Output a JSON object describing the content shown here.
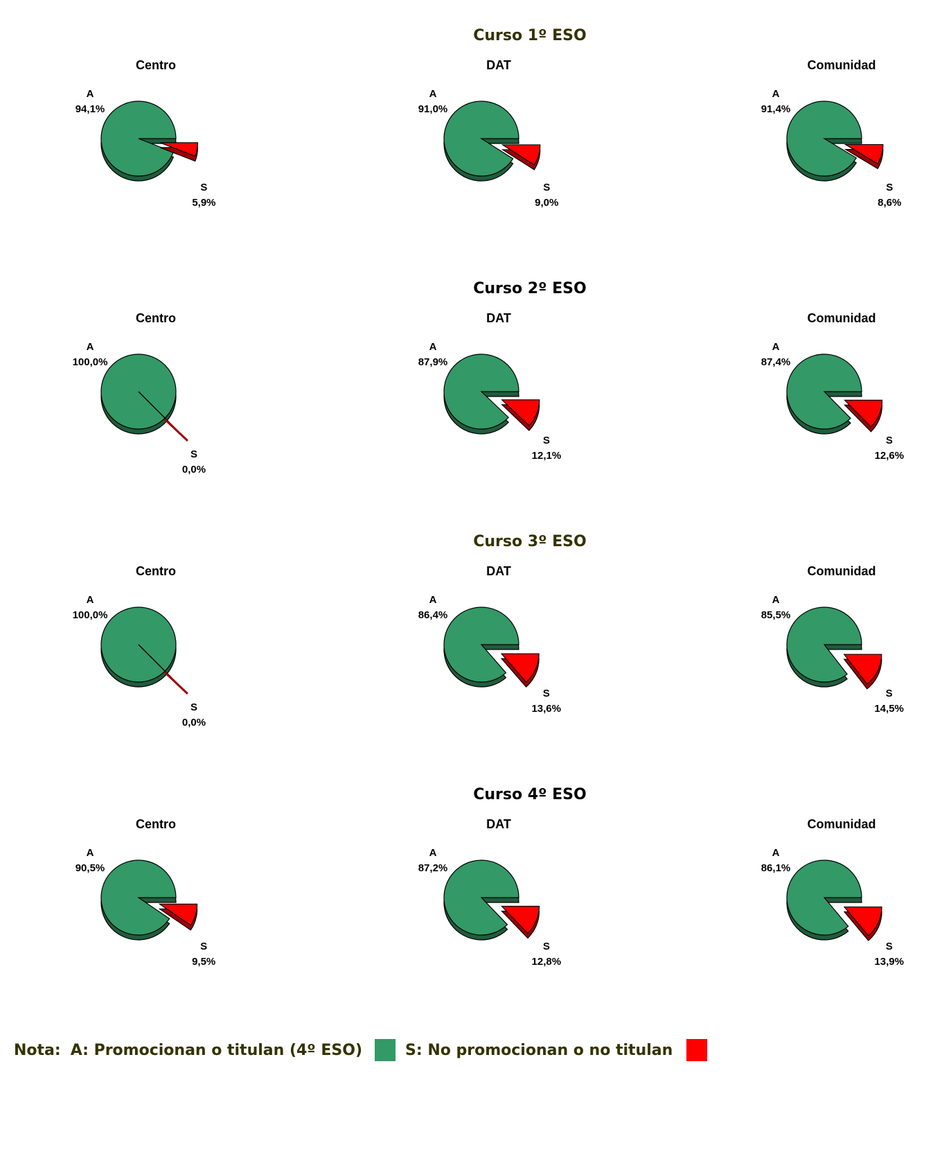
{
  "colors": {
    "green": "#339966",
    "red": "#ff0000",
    "title_dark": "#333300",
    "title_black": "#000000"
  },
  "chart_data": [
    {
      "section": "Curso 1º ESO",
      "title": "Centro",
      "type": "pie",
      "slices": [
        {
          "label": "A",
          "value": 94.1,
          "text": "94,1%"
        },
        {
          "label": "S",
          "value": 5.9,
          "text": "5,9%"
        }
      ]
    },
    {
      "section": "Curso 1º ESO",
      "title": "DAT",
      "type": "pie",
      "slices": [
        {
          "label": "A",
          "value": 91.0,
          "text": "91,0%"
        },
        {
          "label": "S",
          "value": 9.0,
          "text": "9,0%"
        }
      ]
    },
    {
      "section": "Curso 1º ESO",
      "title": "Comunidad",
      "type": "pie",
      "slices": [
        {
          "label": "A",
          "value": 91.4,
          "text": "91,4%"
        },
        {
          "label": "S",
          "value": 8.6,
          "text": "8,6%"
        }
      ]
    },
    {
      "section": "Curso 2º ESO",
      "title": "Centro",
      "type": "pie",
      "slices": [
        {
          "label": "A",
          "value": 100.0,
          "text": "100,0%"
        },
        {
          "label": "S",
          "value": 0.0,
          "text": "0,0%"
        }
      ]
    },
    {
      "section": "Curso 2º ESO",
      "title": "DAT",
      "type": "pie",
      "slices": [
        {
          "label": "A",
          "value": 87.9,
          "text": "87,9%"
        },
        {
          "label": "S",
          "value": 12.1,
          "text": "12,1%"
        }
      ]
    },
    {
      "section": "Curso 2º ESO",
      "title": "Comunidad",
      "type": "pie",
      "slices": [
        {
          "label": "A",
          "value": 87.4,
          "text": "87,4%"
        },
        {
          "label": "S",
          "value": 12.6,
          "text": "12,6%"
        }
      ]
    },
    {
      "section": "Curso 3º ESO",
      "title": "Centro",
      "type": "pie",
      "slices": [
        {
          "label": "A",
          "value": 100.0,
          "text": "100,0%"
        },
        {
          "label": "S",
          "value": 0.0,
          "text": "0,0%"
        }
      ]
    },
    {
      "section": "Curso 3º ESO",
      "title": "DAT",
      "type": "pie",
      "slices": [
        {
          "label": "A",
          "value": 86.4,
          "text": "86,4%"
        },
        {
          "label": "S",
          "value": 13.6,
          "text": "13,6%"
        }
      ]
    },
    {
      "section": "Curso 3º ESO",
      "title": "Comunidad",
      "type": "pie",
      "slices": [
        {
          "label": "A",
          "value": 85.5,
          "text": "85,5%"
        },
        {
          "label": "S",
          "value": 14.5,
          "text": "14,5%"
        }
      ]
    },
    {
      "section": "Curso 4º ESO",
      "title": "Centro",
      "type": "pie",
      "slices": [
        {
          "label": "A",
          "value": 90.5,
          "text": "90,5%"
        },
        {
          "label": "S",
          "value": 9.5,
          "text": "9,5%"
        }
      ]
    },
    {
      "section": "Curso 4º ESO",
      "title": "DAT",
      "type": "pie",
      "slices": [
        {
          "label": "A",
          "value": 87.2,
          "text": "87,2%"
        },
        {
          "label": "S",
          "value": 12.8,
          "text": "12,8%"
        }
      ]
    },
    {
      "section": "Curso 4º ESO",
      "title": "Comunidad",
      "type": "pie",
      "slices": [
        {
          "label": "A",
          "value": 86.1,
          "text": "86,1%"
        },
        {
          "label": "S",
          "value": 13.9,
          "text": "13,9%"
        }
      ]
    }
  ],
  "sections": [
    {
      "title": "Curso 1º ESO",
      "color": "#333300"
    },
    {
      "title": "Curso 2º ESO",
      "color": "#000000"
    },
    {
      "title": "Curso 3º ESO",
      "color": "#333300"
    },
    {
      "title": "Curso 4º ESO",
      "color": "#000000"
    }
  ],
  "legend": {
    "note": "Nota:",
    "a_text": "A: Promocionan o titulan (4º ESO)",
    "s_text": "S: No promocionan o no titulan"
  }
}
